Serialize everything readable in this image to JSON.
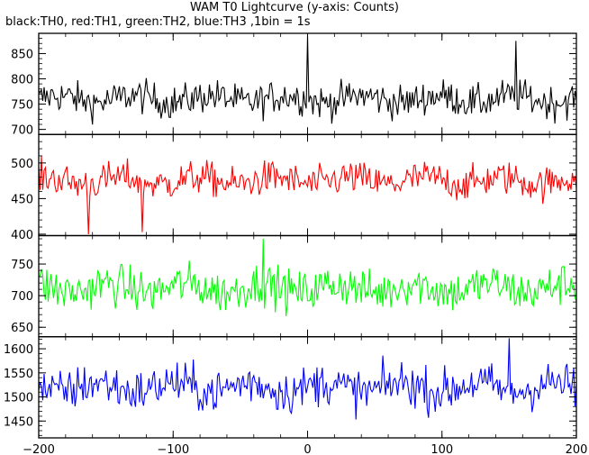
{
  "chart_data": {
    "type": "line",
    "title": "WAM T0 Lightcurve (y-axis: Counts)",
    "subtitle": "black:TH0, red:TH1, green:TH2, blue:TH3 ,1bin = 1s",
    "xlim": [
      -200,
      200
    ],
    "x_ticks": [
      -200,
      -100,
      0,
      100,
      200
    ],
    "x_tick_labels": [
      "−200",
      "−100",
      "0",
      "100",
      "200"
    ],
    "grid": false,
    "legend": "none (described in subtitle)",
    "series": [
      {
        "name": "TH0",
        "color": "#000000",
        "ylim": [
          690,
          890
        ],
        "y_ticks": [
          700,
          750,
          800,
          850
        ],
        "mean": 760,
        "noise_sd": 28,
        "spikes": [
          {
            "x": 0,
            "y": 885
          },
          {
            "x": 155,
            "y": 875
          }
        ],
        "x_start": -200,
        "x_step": 1,
        "n_points": 401
      },
      {
        "name": "TH1",
        "color": "#ff0000",
        "ylim": [
          398,
          540
        ],
        "y_ticks": [
          400,
          450,
          500
        ],
        "mean": 475,
        "noise_sd": 20,
        "spikes": [
          {
            "x": -163,
            "y": 400
          },
          {
            "x": -123,
            "y": 403
          }
        ],
        "x_start": -200,
        "x_step": 1,
        "n_points": 401
      },
      {
        "name": "TH2",
        "color": "#00ff00",
        "ylim": [
          635,
          795
        ],
        "y_ticks": [
          650,
          700,
          750
        ],
        "mean": 712,
        "noise_sd": 28,
        "spikes": [
          {
            "x": -33,
            "y": 790
          }
        ],
        "x_start": -200,
        "x_step": 1,
        "n_points": 401
      },
      {
        "name": "TH3",
        "color": "#0000ff",
        "ylim": [
          1415,
          1625
        ],
        "y_ticks": [
          1450,
          1500,
          1550,
          1600
        ],
        "mean": 1520,
        "noise_sd": 38,
        "spikes": [
          {
            "x": 150,
            "y": 1622
          }
        ],
        "x_start": -200,
        "x_step": 1,
        "n_points": 401
      }
    ]
  }
}
